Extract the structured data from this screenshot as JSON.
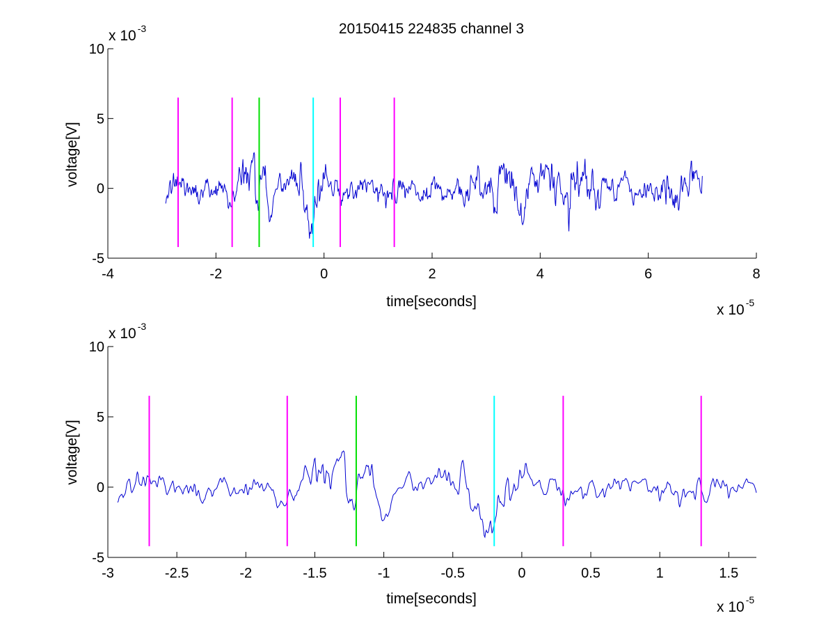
{
  "colors": {
    "signal": "#0000d0",
    "magenta": "#ff00ff",
    "green": "#00e000",
    "cyan": "#00ffff",
    "axis": "#000000",
    "background": "#ffffff"
  },
  "chart_data": [
    {
      "type": "line",
      "title": "20150415 224835 channel 3",
      "xlabel": "time[seconds]",
      "ylabel": "voltage[V]",
      "xlim": [
        -4,
        8
      ],
      "ylim": [
        -5,
        10
      ],
      "x_ticks": [
        -4,
        -2,
        0,
        2,
        4,
        6,
        8
      ],
      "x_tick_labels": [
        "-4",
        "-2",
        "0",
        "2",
        "4",
        "6",
        "8"
      ],
      "y_ticks": [
        -5,
        0,
        5,
        10
      ],
      "y_tick_labels": [
        "-5",
        "0",
        "5",
        "10"
      ],
      "x_exponent": {
        "base": "x 10",
        "power": "-5"
      },
      "y_exponent": {
        "base": "x 10",
        "power": "-3"
      },
      "grid": false,
      "series": [
        {
          "x_start": -2.93,
          "x_end": 7.0,
          "samples": 1300,
          "seed": 11,
          "amplitude": 1.0
        }
      ],
      "markers": [
        {
          "x": -2.7,
          "color": "magenta",
          "y_range": [
            -4.2,
            6.5
          ]
        },
        {
          "x": -1.7,
          "color": "magenta",
          "y_range": [
            -4.2,
            6.5
          ]
        },
        {
          "x": -1.2,
          "color": "green",
          "y_range": [
            -4.2,
            6.5
          ]
        },
        {
          "x": -0.2,
          "color": "cyan",
          "y_range": [
            -4.2,
            6.5
          ]
        },
        {
          "x": 0.3,
          "color": "magenta",
          "y_range": [
            -4.2,
            6.5
          ]
        },
        {
          "x": 1.3,
          "color": "magenta",
          "y_range": [
            -4.2,
            6.5
          ]
        }
      ]
    },
    {
      "type": "line",
      "title": "",
      "xlabel": "time[seconds]",
      "ylabel": "voltage[V]",
      "xlim": [
        -3,
        1.7
      ],
      "ylim": [
        -5,
        10
      ],
      "x_ticks": [
        -3,
        -2.5,
        -2,
        -1.5,
        -1,
        -0.5,
        0,
        0.5,
        1,
        1.5
      ],
      "x_tick_labels": [
        "-3",
        "-2.5",
        "-2",
        "-1.5",
        "-1",
        "-0.5",
        "0",
        "0.5",
        "1",
        "1.5"
      ],
      "y_ticks": [
        -5,
        0,
        5,
        10
      ],
      "y_tick_labels": [
        "-5",
        "0",
        "5",
        "10"
      ],
      "x_exponent": {
        "base": "x 10",
        "power": "-5"
      },
      "y_exponent": {
        "base": "x 10",
        "power": "-3"
      },
      "grid": false,
      "series": [
        {
          "x_start": -2.93,
          "x_end": 1.7,
          "samples": 900,
          "seed": 11,
          "amplitude": 1.0
        }
      ],
      "markers": [
        {
          "x": -2.7,
          "color": "magenta",
          "y_range": [
            -4.2,
            6.5
          ]
        },
        {
          "x": -1.7,
          "color": "magenta",
          "y_range": [
            -4.2,
            6.5
          ]
        },
        {
          "x": -1.2,
          "color": "green",
          "y_range": [
            -4.2,
            6.5
          ]
        },
        {
          "x": -0.2,
          "color": "cyan",
          "y_range": [
            -4.2,
            6.5
          ]
        },
        {
          "x": 0.3,
          "color": "magenta",
          "y_range": [
            -4.2,
            6.5
          ]
        },
        {
          "x": 1.3,
          "color": "magenta",
          "y_range": [
            -4.2,
            6.5
          ]
        }
      ]
    }
  ]
}
